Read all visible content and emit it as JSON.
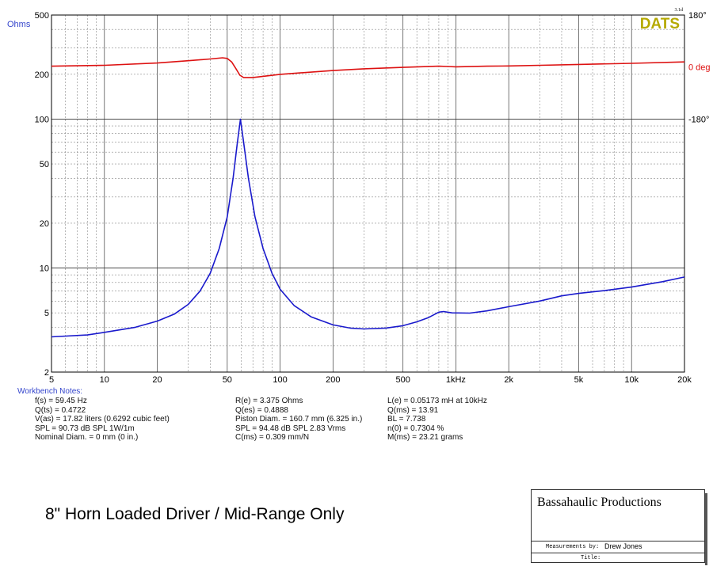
{
  "chart_data": {
    "type": "line",
    "software_badge": "DATS",
    "version_tag": "3.1d",
    "x_scale": "log",
    "x_range": [
      5,
      20000
    ],
    "x_ticks": [
      {
        "v": 5,
        "label": "5"
      },
      {
        "v": 10,
        "label": "10"
      },
      {
        "v": 20,
        "label": "20"
      },
      {
        "v": 50,
        "label": "50"
      },
      {
        "v": 100,
        "label": "100"
      },
      {
        "v": 200,
        "label": "200"
      },
      {
        "v": 500,
        "label": "500"
      },
      {
        "v": 1000,
        "label": "1kHz"
      },
      {
        "v": 2000,
        "label": "2k"
      },
      {
        "v": 5000,
        "label": "5k"
      },
      {
        "v": 10000,
        "label": "10k"
      },
      {
        "v": 20000,
        "label": "20k"
      }
    ],
    "left_axis": {
      "label": "Ohms",
      "scale": "log",
      "range": [
        2,
        500
      ],
      "ticks": [
        "500",
        "200",
        "100",
        "50",
        "20",
        "10",
        "5",
        "2"
      ]
    },
    "right_axis": {
      "ticks": [
        "180°",
        "0 deg",
        "-180°"
      ]
    },
    "grid": true,
    "series": [
      {
        "color": "#1a1acc",
        "axis": "left",
        "points": [
          [
            5,
            3.45
          ],
          [
            8,
            3.55
          ],
          [
            10,
            3.7
          ],
          [
            15,
            4.0
          ],
          [
            20,
            4.4
          ],
          [
            25,
            4.9
          ],
          [
            30,
            5.7
          ],
          [
            35,
            7.0
          ],
          [
            40,
            9.2
          ],
          [
            45,
            13.5
          ],
          [
            50,
            22.0
          ],
          [
            54,
            40.0
          ],
          [
            57,
            68.0
          ],
          [
            59.45,
            100.0
          ],
          [
            62,
            70.0
          ],
          [
            66,
            40.0
          ],
          [
            72,
            22.0
          ],
          [
            80,
            13.5
          ],
          [
            90,
            9.2
          ],
          [
            100,
            7.2
          ],
          [
            120,
            5.6
          ],
          [
            150,
            4.7
          ],
          [
            200,
            4.15
          ],
          [
            250,
            3.95
          ],
          [
            300,
            3.9
          ],
          [
            400,
            3.95
          ],
          [
            500,
            4.1
          ],
          [
            600,
            4.35
          ],
          [
            700,
            4.65
          ],
          [
            800,
            5.05
          ],
          [
            850,
            5.1
          ],
          [
            950,
            5.0
          ],
          [
            1200,
            4.98
          ],
          [
            1500,
            5.15
          ],
          [
            2000,
            5.5
          ],
          [
            3000,
            6.0
          ],
          [
            4000,
            6.5
          ],
          [
            5000,
            6.75
          ],
          [
            7000,
            7.05
          ],
          [
            10000,
            7.45
          ],
          [
            15000,
            8.1
          ],
          [
            20000,
            8.7
          ]
        ]
      },
      {
        "color": "#dd1111",
        "axis": "right",
        "points": [
          [
            5,
            3
          ],
          [
            10,
            6
          ],
          [
            20,
            14
          ],
          [
            30,
            22
          ],
          [
            40,
            28
          ],
          [
            47,
            32
          ],
          [
            50,
            30
          ],
          [
            53,
            18
          ],
          [
            56,
            -5
          ],
          [
            59,
            -28
          ],
          [
            62,
            -36
          ],
          [
            70,
            -36
          ],
          [
            100,
            -25
          ],
          [
            200,
            -12
          ],
          [
            300,
            -6
          ],
          [
            500,
            -1
          ],
          [
            800,
            3
          ],
          [
            900,
            2
          ],
          [
            1000,
            1
          ],
          [
            1500,
            3
          ],
          [
            2000,
            4
          ],
          [
            3000,
            6
          ],
          [
            5000,
            9
          ],
          [
            10000,
            13
          ],
          [
            20000,
            18
          ]
        ]
      }
    ]
  },
  "notes": {
    "heading": "Workbench Notes:",
    "col1": [
      "f(s) = 59.45 Hz",
      "Q(ts) = 0.4722",
      "V(as) = 17.82 liters  (0.6292 cubic feet)",
      "SPL = 90.73 dB SPL 1W/1m",
      "Nominal Diam. = 0 mm (0 in.)"
    ],
    "col2": [
      "R(e) = 3.375 Ohms",
      "Q(es) = 0.4888",
      "Piston Diam. = 160.7 mm (6.325 in.)",
      "SPL = 94.48 dB SPL 2.83 Vrms",
      "C(ms) = 0.309 mm/N"
    ],
    "col3": [
      "L(e) = 0.05173 mH at 10kHz",
      "Q(ms) = 13.91",
      "BL = 7.738",
      "n(0) = 0.7304 %",
      "M(ms) = 23.21 grams"
    ]
  },
  "caption": "8\" Horn Loaded Driver / Mid-Range Only",
  "title_block": {
    "company": "Bassahaulic Productions",
    "measurements_by_label": "Measurements by:",
    "measurements_by_value": "Drew Jones",
    "title_label": "Title:"
  }
}
